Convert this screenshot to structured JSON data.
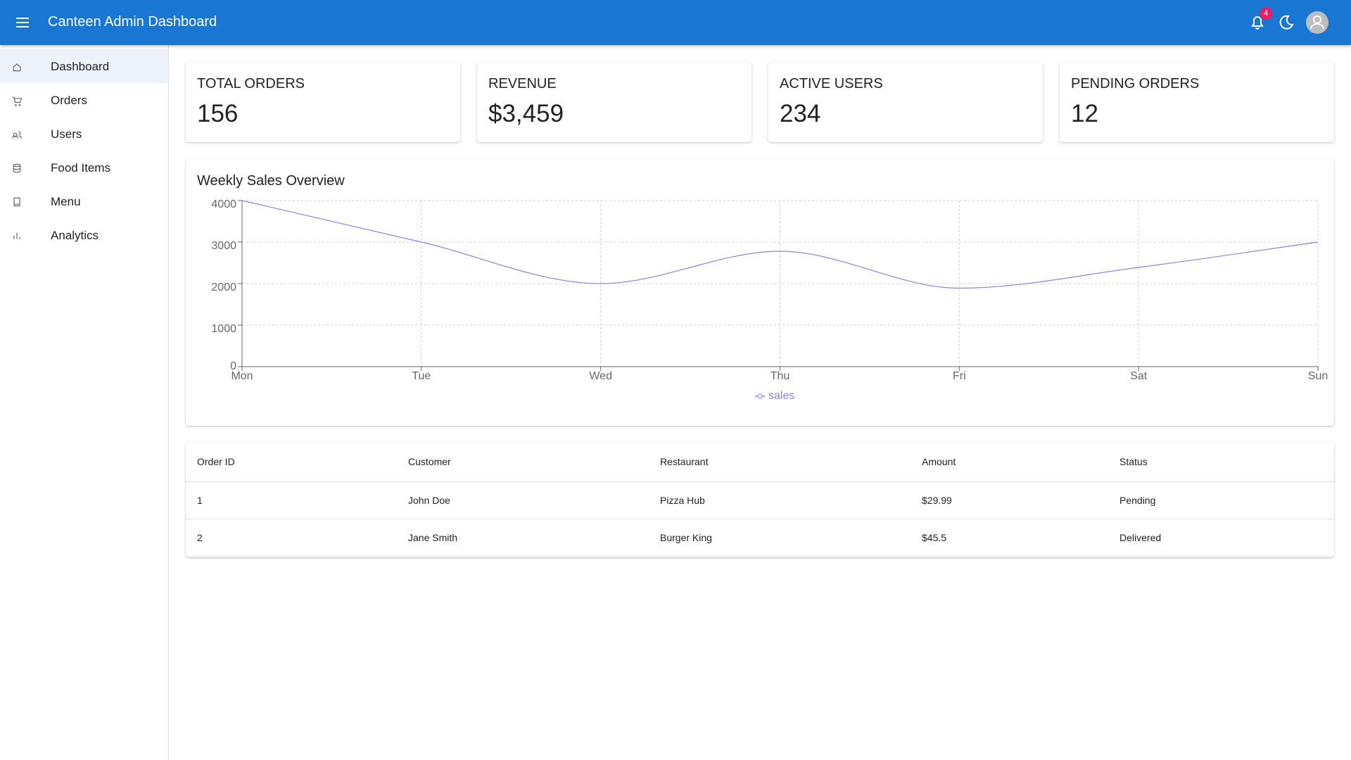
{
  "header": {
    "title": "Canteen Admin Dashboard",
    "notification_count": 4
  },
  "nav": [
    "Dashboard",
    "Orders",
    "Users",
    "Food Items",
    "Menu",
    "Analytics"
  ],
  "stats": [
    {
      "label": "TOTAL ORDERS",
      "value": 156
    },
    {
      "label": "REVENUE",
      "value": "$3,459"
    },
    {
      "label": "ACTIVE USERS",
      "value": 234
    },
    {
      "label": "PENDING ORDERS",
      "value": 12
    }
  ],
  "chart_data": {
    "type": "line",
    "title": "Weekly Sales Overview",
    "categories": [
      "Mon",
      "Tue",
      "Wed",
      "Thu",
      "Fri",
      "Sat",
      "Sun"
    ],
    "series": [
      {
        "name": "sales",
        "color": "#8884d8",
        "values": [
          4000,
          3000,
          2000,
          2780,
          1890,
          2390,
          3000
        ]
      }
    ],
    "ylim": [
      0,
      4000
    ],
    "yticks": [
      0,
      1000,
      2000,
      3000,
      4000
    ],
    "grid": true
  },
  "table": {
    "columns": [
      "Order ID",
      "Customer",
      "Restaurant",
      "Amount",
      "Status"
    ],
    "rows": [
      [
        1,
        "John Doe",
        "Pizza Hub",
        "$29.99",
        "Pending"
      ],
      [
        2,
        "Jane Smith",
        "Burger King",
        "$45.5",
        "Delivered"
      ]
    ]
  }
}
